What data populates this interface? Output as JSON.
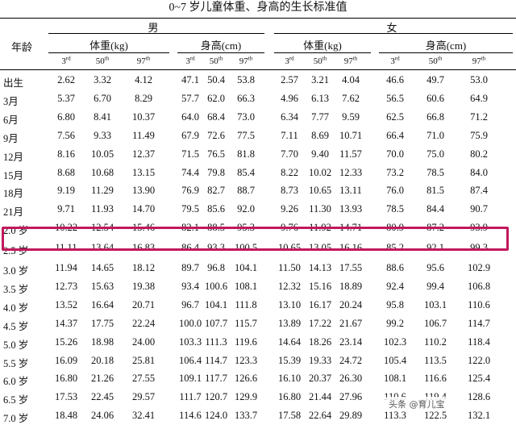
{
  "title": "0~7 岁儿童体重、身高的生长标准值",
  "header": {
    "age_label": "年龄",
    "male": "男",
    "female": "女",
    "weight": "体重(kg)",
    "height": "身高(cm)",
    "percentiles": [
      {
        "num": "3",
        "sup": "rd"
      },
      {
        "num": "50",
        "sup": "th"
      },
      {
        "num": "97",
        "sup": "th"
      }
    ]
  },
  "rows": [
    {
      "age": "出生",
      "values": [
        "2.62",
        "3.32",
        "4.12",
        "47.1",
        "50.4",
        "53.8",
        "2.57",
        "3.21",
        "4.04",
        "46.6",
        "49.7",
        "53.0"
      ]
    },
    {
      "age": "3月",
      "values": [
        "5.37",
        "6.70",
        "8.29",
        "57.7",
        "62.0",
        "66.3",
        "4.96",
        "6.13",
        "7.62",
        "56.5",
        "60.6",
        "64.9"
      ]
    },
    {
      "age": "6月",
      "values": [
        "6.80",
        "8.41",
        "10.37",
        "64.0",
        "68.4",
        "73.0",
        "6.34",
        "7.77",
        "9.59",
        "62.5",
        "66.8",
        "71.2"
      ]
    },
    {
      "age": "9月",
      "values": [
        "7.56",
        "9.33",
        "11.49",
        "67.9",
        "72.6",
        "77.5",
        "7.11",
        "8.69",
        "10.71",
        "66.4",
        "71.0",
        "75.9"
      ]
    },
    {
      "age": "12月",
      "values": [
        "8.16",
        "10.05",
        "12.37",
        "71.5",
        "76.5",
        "81.8",
        "7.70",
        "9.40",
        "11.57",
        "70.0",
        "75.0",
        "80.2"
      ]
    },
    {
      "age": "15月",
      "values": [
        "8.68",
        "10.68",
        "13.15",
        "74.4",
        "79.8",
        "85.4",
        "8.22",
        "10.02",
        "12.33",
        "73.2",
        "78.5",
        "84.0"
      ]
    },
    {
      "age": "18月",
      "values": [
        "9.19",
        "11.29",
        "13.90",
        "76.9",
        "82.7",
        "88.7",
        "8.73",
        "10.65",
        "13.11",
        "76.0",
        "81.5",
        "87.4"
      ]
    },
    {
      "age": "21月",
      "values": [
        "9.71",
        "11.93",
        "14.70",
        "79.5",
        "85.6",
        "92.0",
        "9.26",
        "11.30",
        "13.93",
        "78.5",
        "84.4",
        "90.7"
      ]
    },
    {
      "age": "2.0 岁",
      "values": [
        "10.22",
        "12.54",
        "15.46",
        "82.1",
        "88.5",
        "95.3",
        "9.76",
        "11.92",
        "14.71",
        "80.9",
        "87.2",
        "93.9"
      ]
    },
    {
      "age": "2.5 岁",
      "values": [
        "11.11",
        "13.64",
        "16.83",
        "86.4",
        "93.3",
        "100.5",
        "10.65",
        "13.05",
        "16.16",
        "85.2",
        "92.1",
        "99.3"
      ]
    },
    {
      "age": "3.0 岁",
      "values": [
        "11.94",
        "14.65",
        "18.12",
        "89.7",
        "96.8",
        "104.1",
        "11.50",
        "14.13",
        "17.55",
        "88.6",
        "95.6",
        "102.9"
      ]
    },
    {
      "age": "3.5 岁",
      "values": [
        "12.73",
        "15.63",
        "19.38",
        "93.4",
        "100.6",
        "108.1",
        "12.32",
        "15.16",
        "18.89",
        "92.4",
        "99.4",
        "106.8"
      ]
    },
    {
      "age": "4.0 岁",
      "values": [
        "13.52",
        "16.64",
        "20.71",
        "96.7",
        "104.1",
        "111.8",
        "13.10",
        "16.17",
        "20.24",
        "95.8",
        "103.1",
        "110.6"
      ]
    },
    {
      "age": "4.5 岁",
      "values": [
        "14.37",
        "17.75",
        "22.24",
        "100.0",
        "107.7",
        "115.7",
        "13.89",
        "17.22",
        "21.67",
        "99.2",
        "106.7",
        "114.7"
      ]
    },
    {
      "age": "5.0 岁",
      "values": [
        "15.26",
        "18.98",
        "24.00",
        "103.3",
        "111.3",
        "119.6",
        "14.64",
        "18.26",
        "23.14",
        "102.3",
        "110.2",
        "118.4"
      ]
    },
    {
      "age": "5.5 岁",
      "values": [
        "16.09",
        "20.18",
        "25.81",
        "106.4",
        "114.7",
        "123.3",
        "15.39",
        "19.33",
        "24.72",
        "105.4",
        "113.5",
        "122.0"
      ]
    },
    {
      "age": "6.0 岁",
      "values": [
        "16.80",
        "21.26",
        "27.55",
        "109.1",
        "117.7",
        "126.6",
        "16.10",
        "20.37",
        "26.30",
        "108.1",
        "116.6",
        "125.4"
      ]
    },
    {
      "age": "6.5 岁",
      "values": [
        "17.53",
        "22.45",
        "29.57",
        "111.7",
        "120.7",
        "129.9",
        "16.80",
        "21.44",
        "27.96",
        "110.6",
        "119.4",
        "128.6"
      ]
    },
    {
      "age": "7.0 岁",
      "values": [
        "18.48",
        "24.06",
        "32.41",
        "114.6",
        "124.0",
        "133.7",
        "17.58",
        "22.64",
        "29.89",
        "113.3",
        "122.5",
        "132.1"
      ]
    }
  ],
  "highlighted_row": "2.5 岁",
  "highlight_color": "#c2185b",
  "watermark": "头条 @育儿宝"
}
